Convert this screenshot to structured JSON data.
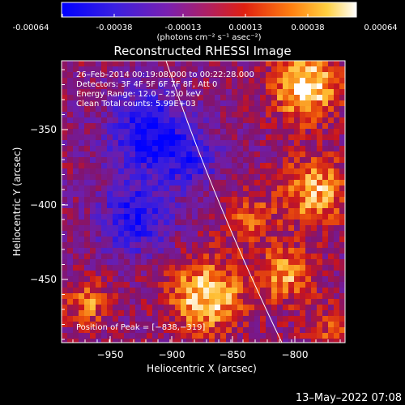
{
  "colorbar": {
    "ticks": [
      "-0.00064",
      "-0.00038",
      "-0.00013",
      "0.00013",
      "0.00038",
      "0.00064"
    ],
    "units": "(photons cm⁻² s⁻¹ asec⁻²)",
    "colors": [
      "#1a1aff",
      "#5a20d8",
      "#9a2090",
      "#d02020",
      "#ff7010",
      "#ffd060",
      "#ffffff"
    ]
  },
  "plot": {
    "title": "Reconstructed RHESSI Image",
    "xlabel": "Heliocentric X (arcsec)",
    "ylabel": "Heliocentric Y (arcsec)",
    "xticks": [
      "−950",
      "−900",
      "−850",
      "−800"
    ],
    "yticks": [
      "−350",
      "−400",
      "−450"
    ],
    "xrange": [
      -978,
      -793
    ],
    "yrange": [
      -498,
      -318
    ]
  },
  "annotations": {
    "time": "26–Feb–2014 00:19:08.000 to 00:22:28.000",
    "detectors": "Detectors: 3F 4F 5F 6F 7F 8F, Att 0",
    "energy": "Energy Range: 12.0 – 25.0 keV",
    "clean": "Clean    Total counts: 5.99E+03",
    "peak": "Position of Peak = [−838,−319]"
  },
  "footer_date": "13–May–2022 07:08"
}
